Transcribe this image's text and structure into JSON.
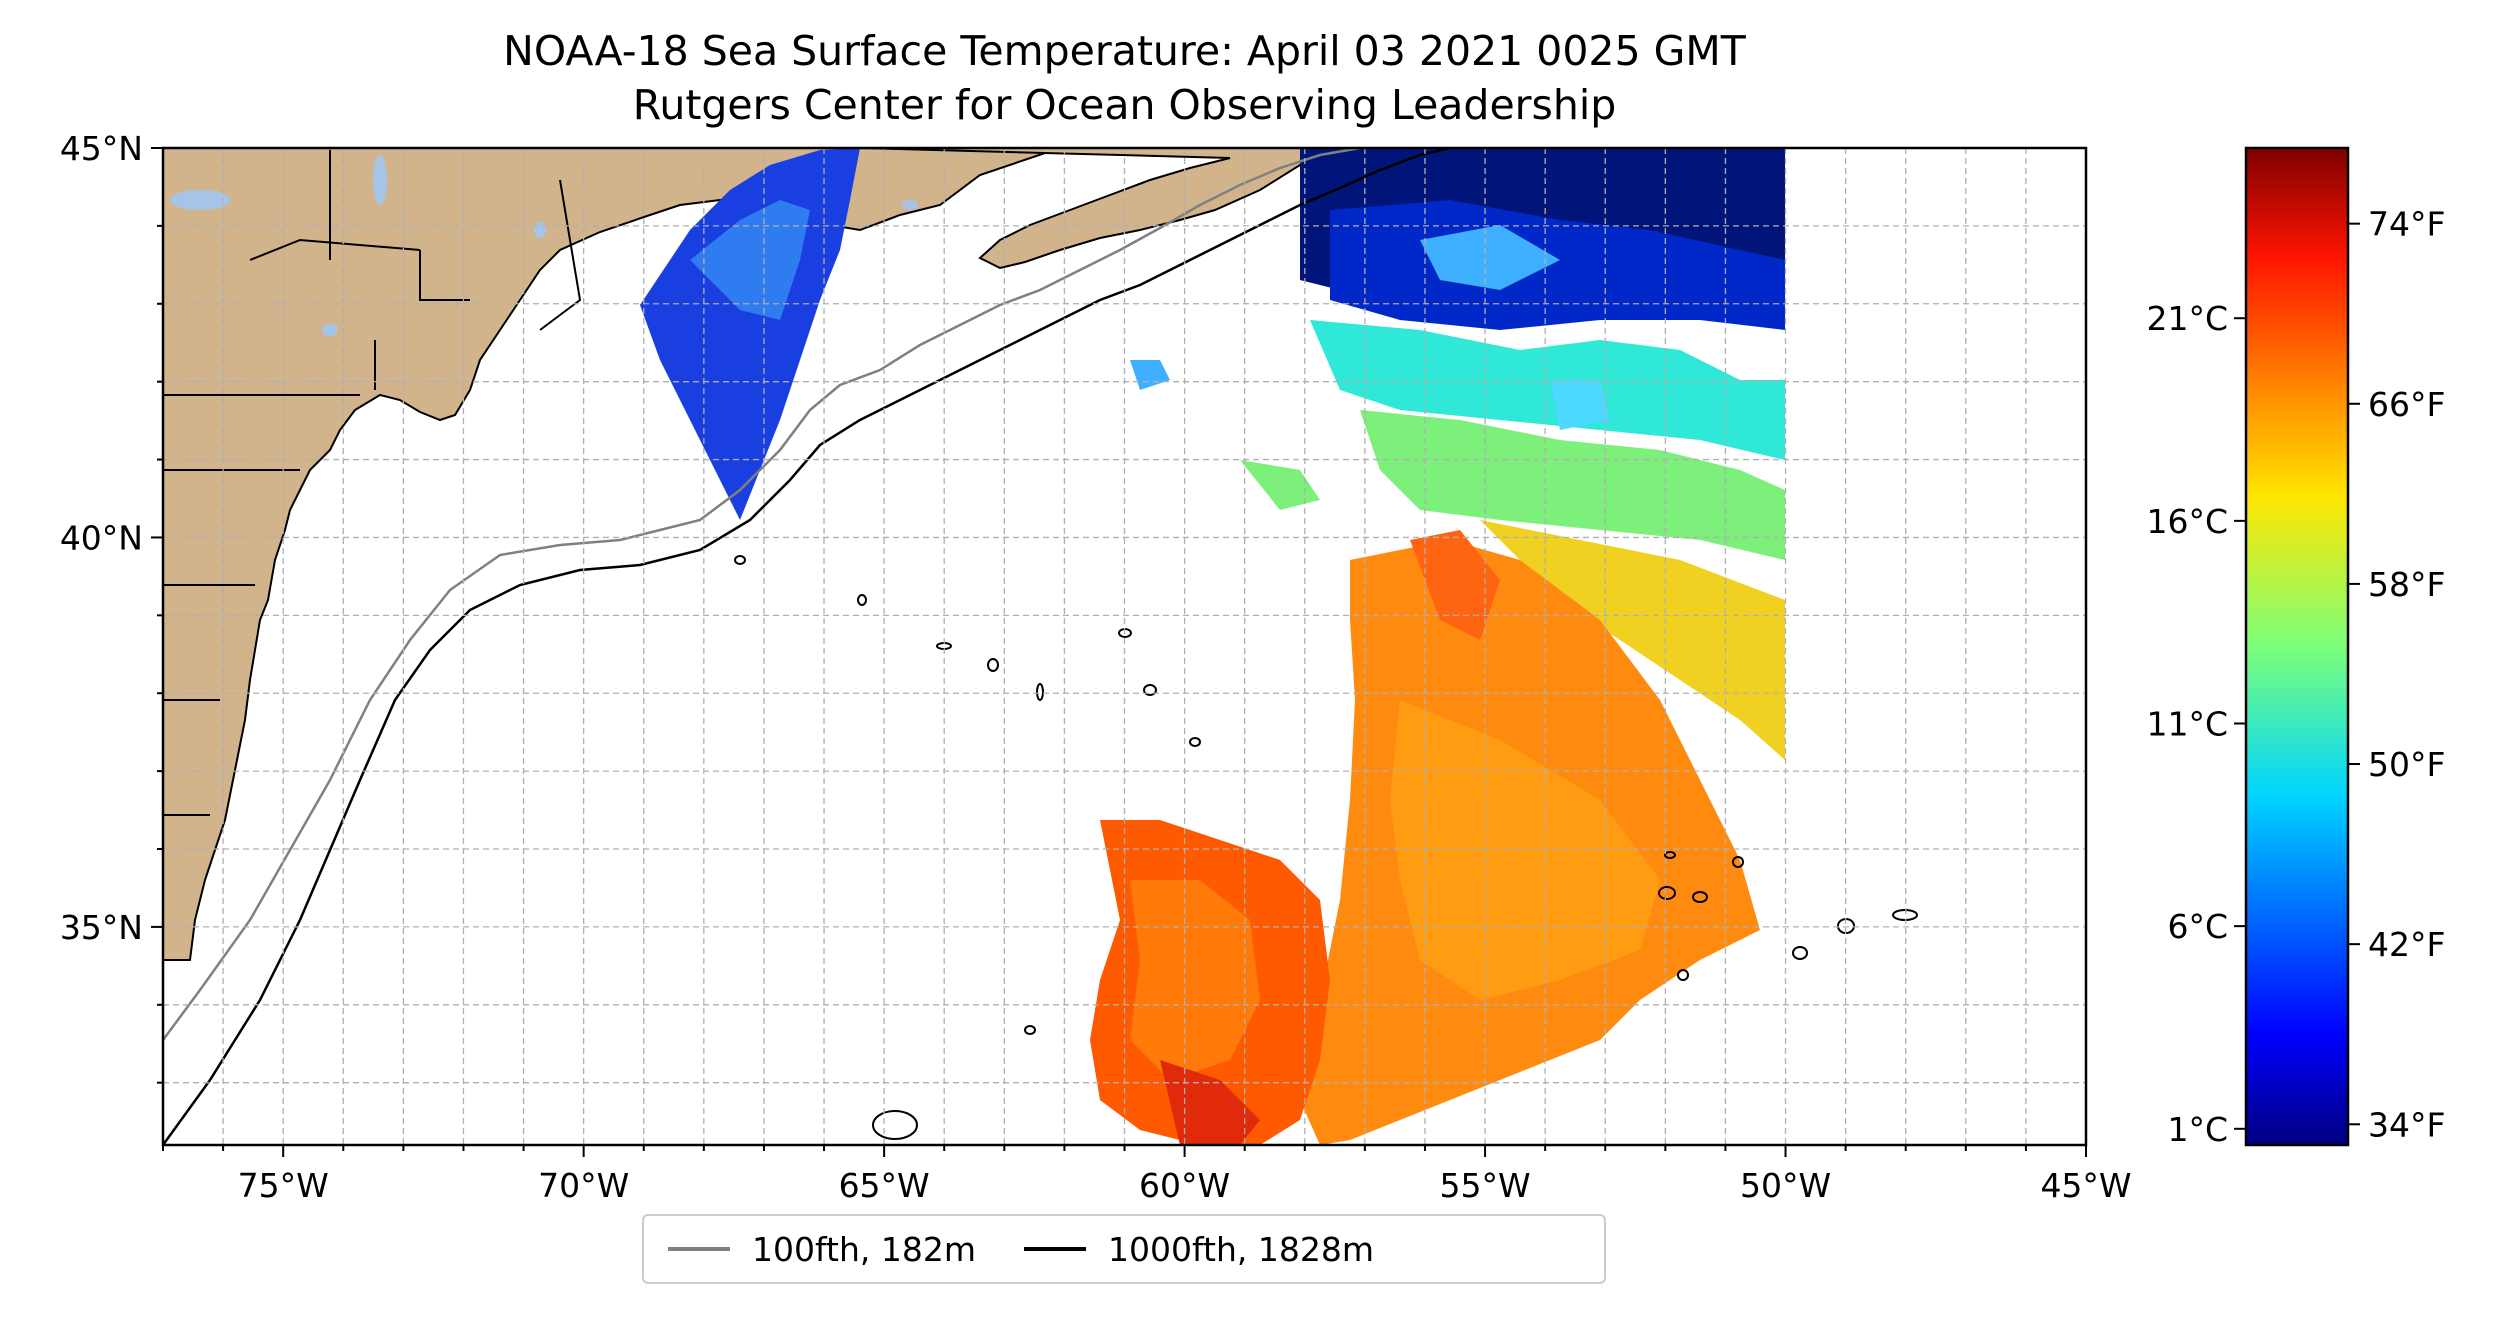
{
  "title": "NOAA-18 Sea Surface Temperature: April 03 2021 0025 GMT",
  "subtitle": "Rutgers Center for Ocean Observing Leadership",
  "map": {
    "lon_range": [
      -77,
      -45
    ],
    "lat_range": [
      32.2,
      45
    ],
    "lon_ticks": [
      "75°W",
      "70°W",
      "65°W",
      "60°W",
      "55°W",
      "50°W",
      "45°W"
    ],
    "lat_ticks": [
      "35°N",
      "40°N",
      "45°N"
    ],
    "gridlines": "dashed",
    "land_color": "#d2b48c",
    "lake_color": "#a6c4e8"
  },
  "legend": {
    "placement": "bottom-center",
    "items": [
      {
        "label": "100fth, 182m",
        "color": "#808080"
      },
      {
        "label": "1000fth, 1828m",
        "color": "#000000"
      }
    ]
  },
  "colorbar": {
    "colormap": "jet",
    "celsius_labels": [
      "1°C",
      "6°C",
      "11°C",
      "16°C",
      "21°C"
    ],
    "fahrenheit_labels": [
      "34°F",
      "42°F",
      "50°F",
      "58°F",
      "66°F",
      "74°F"
    ]
  }
}
